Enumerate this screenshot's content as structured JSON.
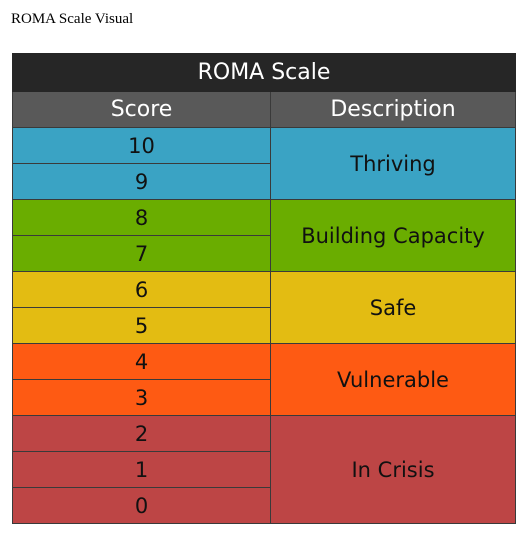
{
  "caption": "ROMA Scale Visual",
  "table": {
    "title": "ROMA Scale",
    "headers": {
      "score": "Score",
      "description": "Description"
    },
    "groups": [
      {
        "label": "Thriving",
        "color": "#3aa3c4",
        "scores": [
          "10",
          "9"
        ]
      },
      {
        "label": "Building Capacity",
        "color": "#6aad00",
        "scores": [
          "8",
          "7"
        ]
      },
      {
        "label": "Safe",
        "color": "#e3bc12",
        "scores": [
          "6",
          "5"
        ]
      },
      {
        "label": "Vulnerable",
        "color": "#fe5a13",
        "scores": [
          "4",
          "3"
        ]
      },
      {
        "label": "In Crisis",
        "color": "#bd4545",
        "scores": [
          "2",
          "1",
          "0"
        ]
      }
    ]
  }
}
